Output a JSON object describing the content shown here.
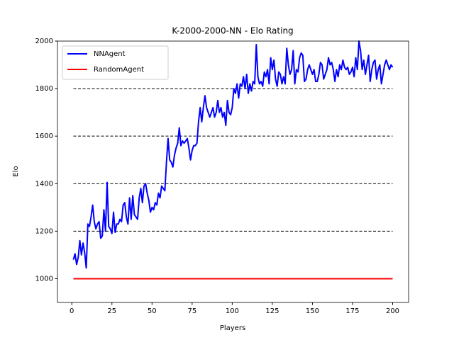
{
  "chart_data": {
    "type": "line",
    "title": "K-2000-2000-NN - Elo Rating",
    "x_label": "Players",
    "y_label": "Elo",
    "x": [
      1,
      2,
      3,
      4,
      5,
      6,
      7,
      8,
      9,
      10,
      11,
      12,
      13,
      14,
      15,
      16,
      17,
      18,
      19,
      20,
      21,
      22,
      23,
      24,
      25,
      26,
      27,
      28,
      29,
      30,
      31,
      32,
      33,
      34,
      35,
      36,
      37,
      38,
      39,
      40,
      41,
      42,
      43,
      44,
      45,
      46,
      47,
      48,
      49,
      50,
      51,
      52,
      53,
      54,
      55,
      56,
      57,
      58,
      59,
      60,
      61,
      62,
      63,
      64,
      65,
      66,
      67,
      68,
      69,
      70,
      71,
      72,
      73,
      74,
      75,
      76,
      77,
      78,
      79,
      80,
      81,
      82,
      83,
      84,
      85,
      86,
      87,
      88,
      89,
      90,
      91,
      92,
      93,
      94,
      95,
      96,
      97,
      98,
      99,
      100,
      101,
      102,
      103,
      104,
      105,
      106,
      107,
      108,
      109,
      110,
      111,
      112,
      113,
      114,
      115,
      116,
      117,
      118,
      119,
      120,
      121,
      122,
      123,
      124,
      125,
      126,
      127,
      128,
      129,
      130,
      131,
      132,
      133,
      134,
      135,
      136,
      137,
      138,
      139,
      140,
      141,
      142,
      143,
      144,
      145,
      146,
      147,
      148,
      149,
      150,
      151,
      152,
      153,
      154,
      155,
      156,
      157,
      158,
      159,
      160,
      161,
      162,
      163,
      164,
      165,
      166,
      167,
      168,
      169,
      170,
      171,
      172,
      173,
      174,
      175,
      176,
      177,
      178,
      179,
      180,
      181,
      182,
      183,
      184,
      185,
      186,
      187,
      188,
      189,
      190,
      191,
      192,
      193,
      194,
      195,
      196,
      197,
      198,
      199,
      200
    ],
    "series": [
      {
        "name": "NNAgent",
        "color": "#0000ff",
        "values": [
          1080,
          1105,
          1060,
          1090,
          1160,
          1100,
          1150,
          1110,
          1045,
          1230,
          1220,
          1260,
          1310,
          1240,
          1210,
          1230,
          1240,
          1170,
          1180,
          1290,
          1200,
          1405,
          1220,
          1210,
          1190,
          1280,
          1195,
          1230,
          1230,
          1250,
          1240,
          1310,
          1320,
          1260,
          1230,
          1340,
          1250,
          1350,
          1270,
          1260,
          1250,
          1340,
          1380,
          1320,
          1390,
          1400,
          1360,
          1330,
          1280,
          1300,
          1290,
          1320,
          1310,
          1360,
          1340,
          1390,
          1380,
          1370,
          1490,
          1590,
          1500,
          1490,
          1470,
          1520,
          1550,
          1570,
          1635,
          1560,
          1580,
          1570,
          1580,
          1590,
          1550,
          1500,
          1540,
          1560,
          1560,
          1570,
          1660,
          1720,
          1660,
          1720,
          1770,
          1720,
          1700,
          1680,
          1700,
          1720,
          1680,
          1700,
          1750,
          1700,
          1720,
          1680,
          1700,
          1645,
          1750,
          1700,
          1690,
          1720,
          1800,
          1780,
          1820,
          1760,
          1820,
          1810,
          1850,
          1800,
          1860,
          1780,
          1820,
          1790,
          1830,
          1820,
          1985,
          1850,
          1820,
          1830,
          1810,
          1870,
          1850,
          1880,
          1820,
          1930,
          1880,
          1920,
          1840,
          1810,
          1870,
          1860,
          1820,
          1850,
          1820,
          1970,
          1900,
          1860,
          1880,
          1960,
          1820,
          1880,
          1870,
          1930,
          1950,
          1940,
          1830,
          1840,
          1880,
          1900,
          1880,
          1860,
          1880,
          1830,
          1830,
          1860,
          1910,
          1900,
          1840,
          1860,
          1880,
          1930,
          1900,
          1910,
          1880,
          1830,
          1880,
          1850,
          1900,
          1880,
          1920,
          1890,
          1880,
          1890,
          1860,
          1870,
          1890,
          1850,
          1930,
          1880,
          2000,
          1960,
          1880,
          1920,
          1860,
          1900,
          1940,
          1830,
          1880,
          1910,
          1920,
          1840,
          1880,
          1900,
          1820,
          1860,
          1900,
          1920,
          1900,
          1880,
          1900,
          1890
        ]
      },
      {
        "name": "RandomAgent",
        "color": "#ff0000",
        "values": [
          1000,
          1000,
          1000,
          1000,
          1000,
          1000,
          1000,
          1000,
          1000,
          1000,
          1000,
          1000,
          1000,
          1000,
          1000,
          1000,
          1000,
          1000,
          1000,
          1000,
          1000,
          1000,
          1000,
          1000,
          1000,
          1000,
          1000,
          1000,
          1000,
          1000,
          1000,
          1000,
          1000,
          1000,
          1000,
          1000,
          1000,
          1000,
          1000,
          1000,
          1000,
          1000,
          1000,
          1000,
          1000,
          1000,
          1000,
          1000,
          1000,
          1000,
          1000,
          1000,
          1000,
          1000,
          1000,
          1000,
          1000,
          1000,
          1000,
          1000,
          1000,
          1000,
          1000,
          1000,
          1000,
          1000,
          1000,
          1000,
          1000,
          1000,
          1000,
          1000,
          1000,
          1000,
          1000,
          1000,
          1000,
          1000,
          1000,
          1000,
          1000,
          1000,
          1000,
          1000,
          1000,
          1000,
          1000,
          1000,
          1000,
          1000,
          1000,
          1000,
          1000,
          1000,
          1000,
          1000,
          1000,
          1000,
          1000,
          1000,
          1000,
          1000,
          1000,
          1000,
          1000,
          1000,
          1000,
          1000,
          1000,
          1000,
          1000,
          1000,
          1000,
          1000,
          1000,
          1000,
          1000,
          1000,
          1000,
          1000,
          1000,
          1000,
          1000,
          1000,
          1000,
          1000,
          1000,
          1000,
          1000,
          1000,
          1000,
          1000,
          1000,
          1000,
          1000,
          1000,
          1000,
          1000,
          1000,
          1000,
          1000,
          1000,
          1000,
          1000,
          1000,
          1000,
          1000,
          1000,
          1000,
          1000,
          1000,
          1000,
          1000,
          1000,
          1000,
          1000,
          1000,
          1000,
          1000,
          1000,
          1000,
          1000,
          1000,
          1000,
          1000,
          1000,
          1000,
          1000,
          1000,
          1000,
          1000,
          1000,
          1000,
          1000,
          1000,
          1000,
          1000,
          1000,
          1000,
          1000,
          1000,
          1000,
          1000,
          1000,
          1000,
          1000,
          1000,
          1000,
          1000,
          1000,
          1000,
          1000,
          1000,
          1000,
          1000,
          1000,
          1000,
          1000,
          1000,
          1000
        ]
      }
    ],
    "reference_lines": [
      1200,
      1400,
      1600,
      1800
    ],
    "xlim": [
      -8.95,
      209.95
    ],
    "xticks": [
      0,
      25,
      50,
      75,
      100,
      125,
      150,
      175,
      200
    ],
    "ylim": [
      900,
      2000
    ],
    "yticks": [
      1000,
      1200,
      1400,
      1600,
      1800,
      2000
    ],
    "legend": "upper left"
  }
}
